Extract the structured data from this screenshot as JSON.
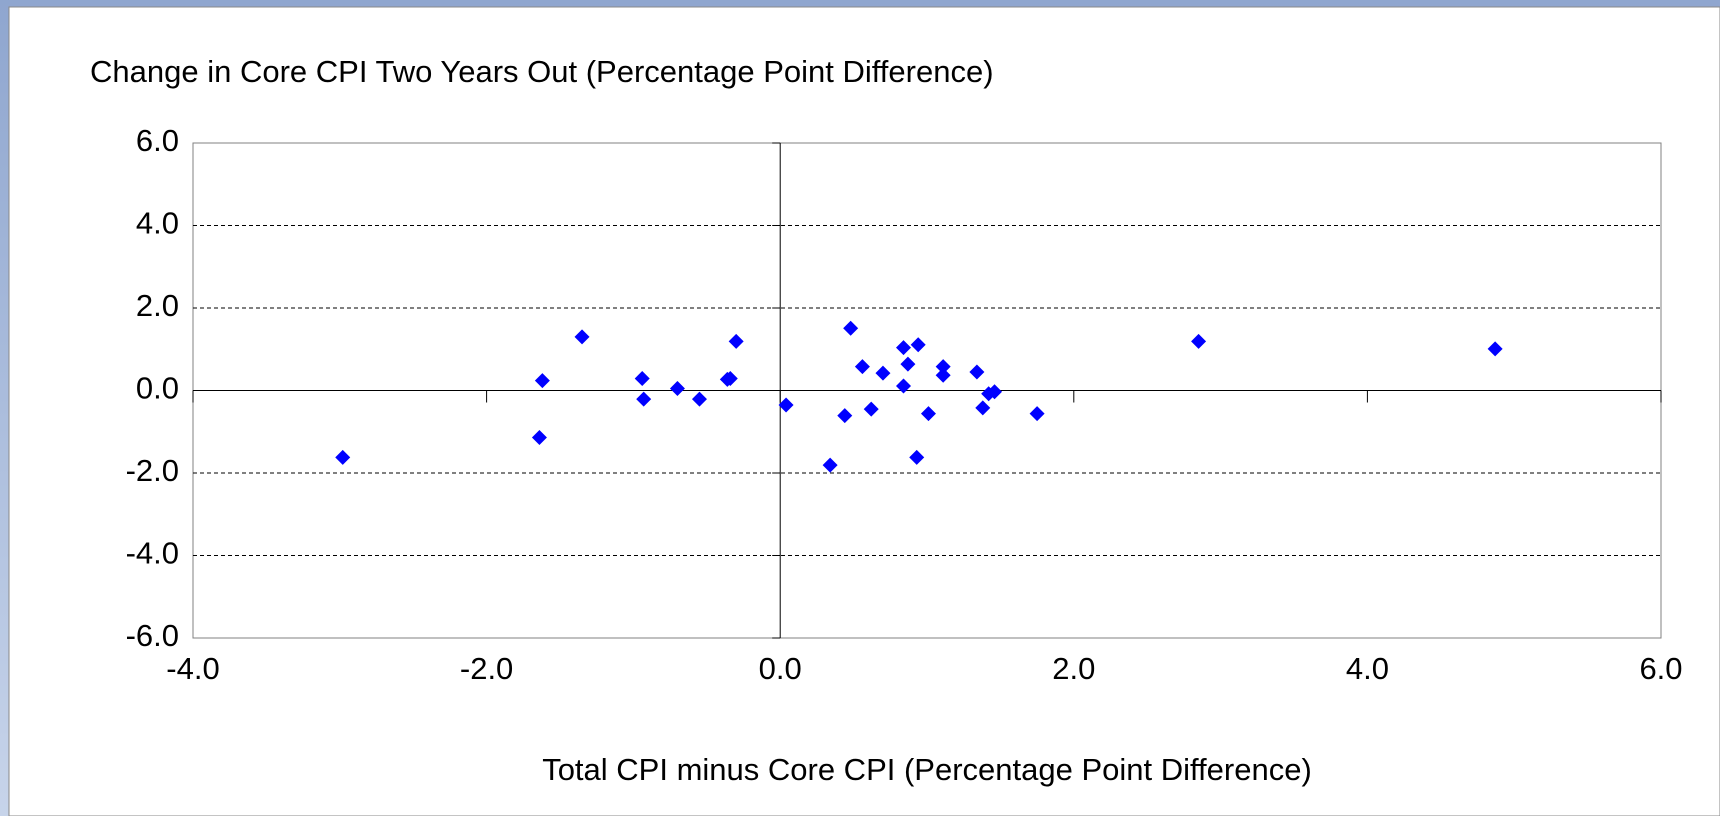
{
  "chart_data": {
    "type": "scatter",
    "title": "Change in Core CPI Two Years Out (Percentage Point Difference)",
    "xlabel": "Total CPI minus Core CPI (Percentage Point Difference)",
    "color": "#0000ff",
    "x": [
      -2.98,
      -1.62,
      -1.64,
      -1.35,
      -0.94,
      -0.93,
      -0.7,
      -0.55,
      -0.36,
      -0.34,
      -0.3,
      0.04,
      0.34,
      0.44,
      0.48,
      0.56,
      0.62,
      0.7,
      0.84,
      0.84,
      0.87,
      0.94,
      0.93,
      1.01,
      1.11,
      1.11,
      1.34,
      1.38,
      1.42,
      1.46,
      1.75,
      2.85,
      4.87
    ],
    "values": [
      -1.62,
      0.24,
      -1.14,
      1.3,
      0.29,
      -0.21,
      0.05,
      -0.21,
      0.27,
      0.29,
      1.19,
      -0.35,
      -1.81,
      -0.61,
      1.51,
      0.58,
      -0.45,
      0.42,
      1.04,
      0.11,
      0.64,
      1.11,
      -1.62,
      -0.56,
      0.58,
      0.37,
      0.45,
      -0.42,
      -0.08,
      -0.03,
      -0.56,
      1.19,
      1.01
    ],
    "xlim": [
      -4,
      6
    ],
    "ylim": [
      -6,
      6
    ],
    "xticks": [
      {
        "value": -4,
        "label": "-4.0"
      },
      {
        "value": -2,
        "label": "-2.0"
      },
      {
        "value": 0,
        "label": "0.0"
      },
      {
        "value": 2,
        "label": "2.0"
      },
      {
        "value": 4,
        "label": "4.0"
      },
      {
        "value": 6,
        "label": "6.0"
      }
    ],
    "yticks": [
      {
        "value": -6,
        "label": "-6.0"
      },
      {
        "value": -4,
        "label": "-4.0"
      },
      {
        "value": -2,
        "label": "-2.0"
      },
      {
        "value": 0,
        "label": "0.0"
      },
      {
        "value": 2,
        "label": "2.0"
      },
      {
        "value": 4,
        "label": "4.0"
      },
      {
        "value": 6,
        "label": "6.0"
      }
    ],
    "grid": true
  }
}
